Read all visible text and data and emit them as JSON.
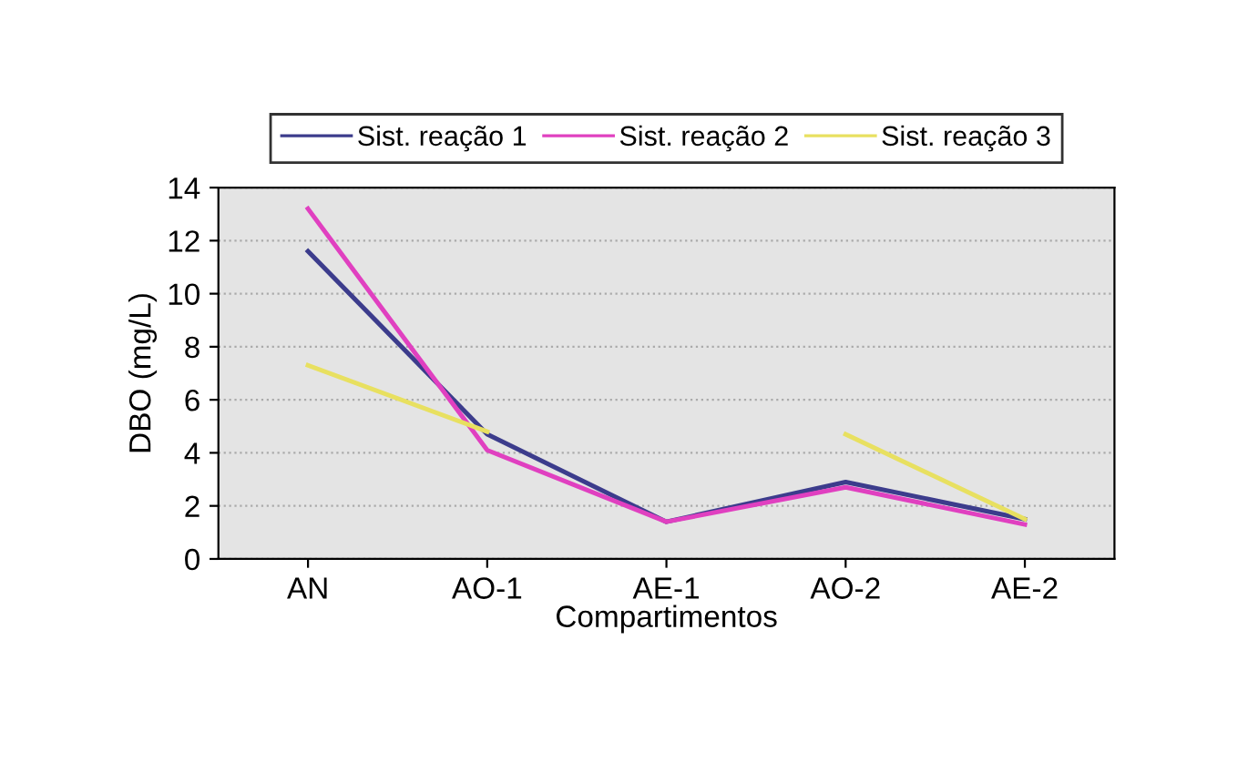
{
  "chart_data": {
    "type": "line",
    "xlabel": "Compartimentos",
    "ylabel": "DBO (mg/L)",
    "categories": [
      "AN",
      "AO-1",
      "AE-1",
      "AO-2",
      "AE-2"
    ],
    "series": [
      {
        "name": "Sist. reação 1",
        "color": "#3c3c8c",
        "values": [
          11.6,
          4.7,
          1.4,
          2.9,
          1.5
        ]
      },
      {
        "name": "Sist. reação 2",
        "color": "#e040c0",
        "values": [
          13.2,
          4.1,
          1.4,
          2.7,
          1.3
        ]
      },
      {
        "name": "Sist. reação 3",
        "color": "#e8e060",
        "values": [
          7.3,
          4.8,
          null,
          4.7,
          1.5
        ]
      }
    ],
    "ylim": [
      0,
      14
    ],
    "yticks": [
      0,
      2,
      4,
      6,
      8,
      10,
      12,
      14
    ],
    "grid": "y",
    "legend": "top",
    "marker": "none"
  }
}
